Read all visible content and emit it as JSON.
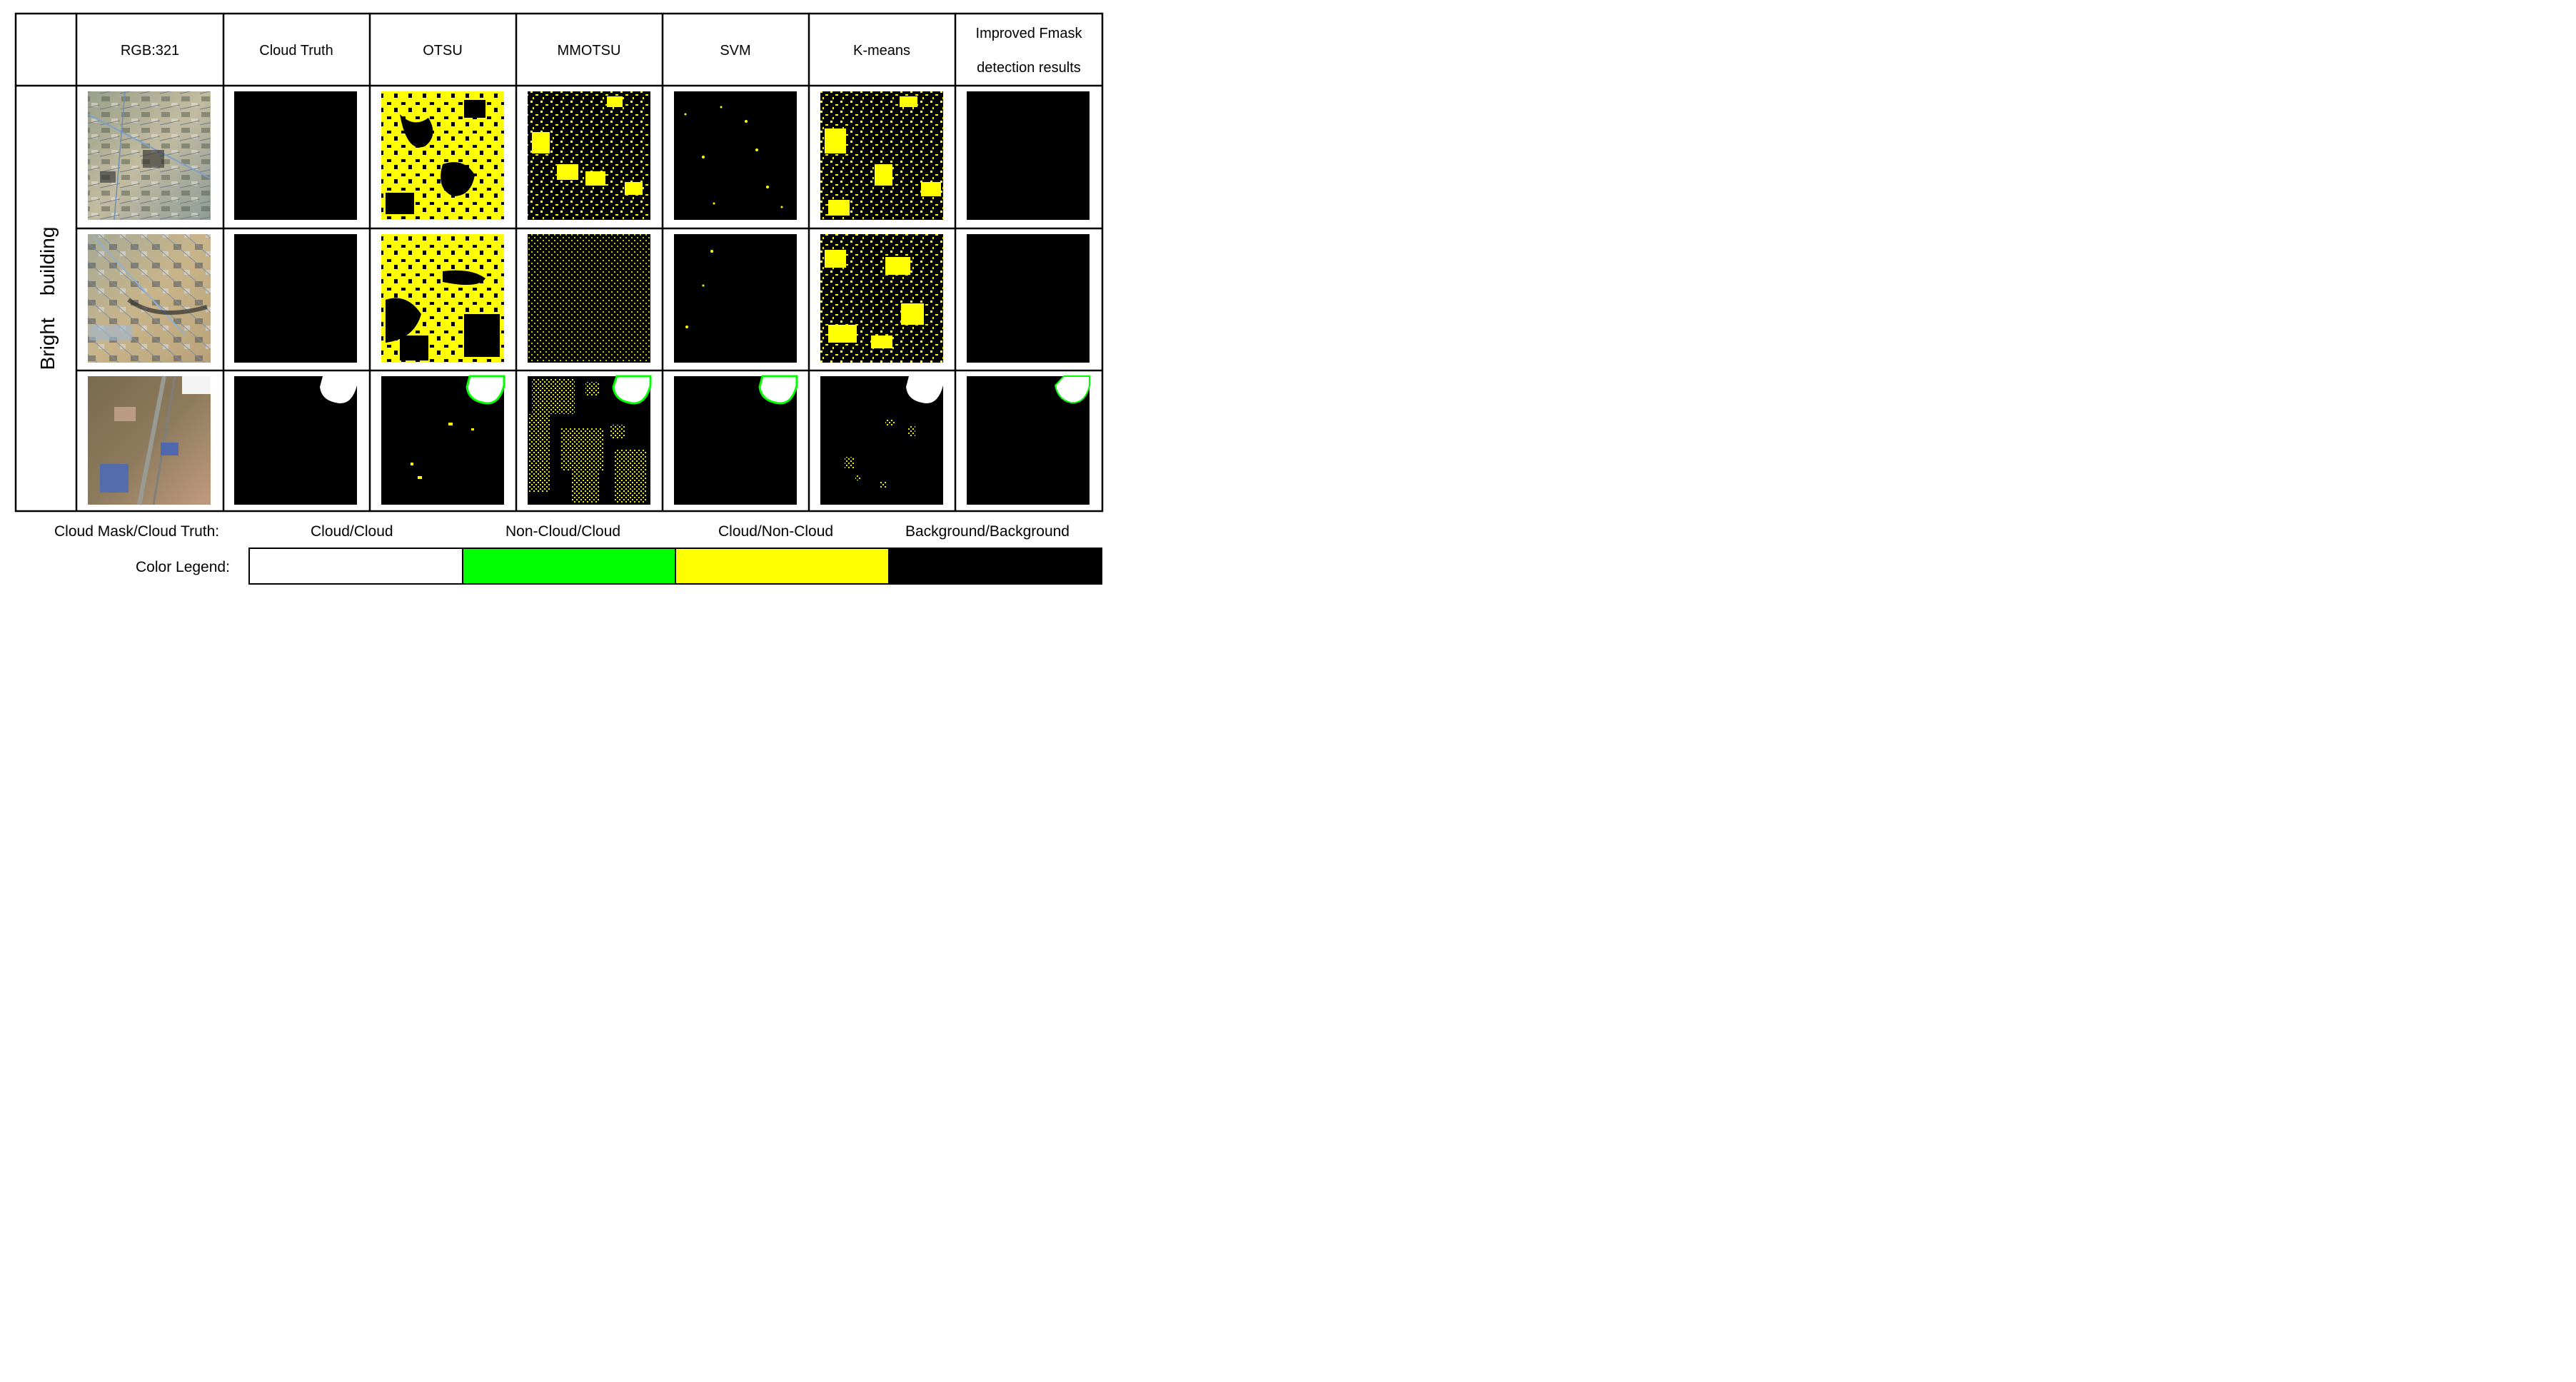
{
  "columns": [
    "RGB:321",
    "Cloud Truth",
    "OTSU",
    "MMOTSU",
    "SVM",
    "K-means",
    "Improved Fmask detection results"
  ],
  "columns_display": {
    "rgb": "RGB:321",
    "truth": "Cloud Truth",
    "otsu": "OTSU",
    "mmotsu": "MMOTSU",
    "svm": "SVM",
    "kmeans": "K-means",
    "fmask_line1": "Improved Fmask",
    "fmask_line2": "detection results"
  },
  "row_group_label": "Bright    building",
  "rows": [
    {
      "scene": "bright-building-1",
      "cells": [
        "rgb",
        "background",
        "cloud-heavy",
        "cloud-medium",
        "cloud-sparse",
        "cloud-medium",
        "background"
      ]
    },
    {
      "scene": "bright-building-2",
      "cells": [
        "rgb",
        "background",
        "cloud-heavy",
        "cloud-texture",
        "cloud-sparse",
        "cloud-medium",
        "background"
      ]
    },
    {
      "scene": "bright-building-3",
      "cells": [
        "rgb",
        "true-cloud",
        "true-cloud-minor",
        "true-cloud-patches",
        "true-cloud",
        "true-cloud-blocks",
        "true-cloud"
      ]
    }
  ],
  "legend": {
    "prefix": "Cloud Mask/Cloud Truth:",
    "bar_label": "Color Legend:",
    "items": [
      {
        "label": "Cloud/Cloud",
        "color": "#ffffff"
      },
      {
        "label": "Non-Cloud/Cloud",
        "color": "#00ff00"
      },
      {
        "label": "Cloud/Non-Cloud",
        "color": "#ffff00"
      },
      {
        "label": "Background/Background",
        "color": "#000000"
      }
    ]
  },
  "colors": {
    "cloud_cloud": "#ffffff",
    "noncloud_cloud": "#00ff00",
    "cloud_noncloud": "#ffff00",
    "background": "#000000"
  }
}
